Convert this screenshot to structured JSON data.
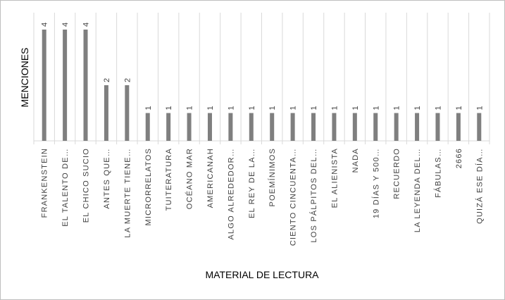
{
  "chart_data": {
    "type": "bar",
    "y_label": "MENCIONES",
    "x_label": "MATERIAL DE LECTURA",
    "categories": [
      "FRANKENSTEIN",
      "EL TALENTO DE…",
      "EL CHICO SUCIO",
      "ANTES QUE…",
      "LA MUERTE TIENE…",
      "MICRORRELATOS",
      "TUITERATURA",
      "OCÉANO MAR",
      "AMERICANAH",
      "ALGO ALREDEDOR…",
      "EL REY DE LA…",
      "POEMÍNIMOS",
      "CIENTO CINCUENTA…",
      "LOS PÁLPITOS DEL…",
      "EL ALIENISTA",
      "NADA",
      "19 DÍAS Y 500…",
      "RECUERDO",
      "LA LEYENDA DEL…",
      "FÁBULAS…",
      "2666",
      "QUIZÁ ESE DÍA…"
    ],
    "values": [
      4,
      4,
      4,
      2,
      2,
      1,
      1,
      1,
      1,
      1,
      1,
      1,
      1,
      1,
      1,
      1,
      1,
      1,
      1,
      1,
      1,
      1
    ],
    "color": "#7f7f7f"
  }
}
